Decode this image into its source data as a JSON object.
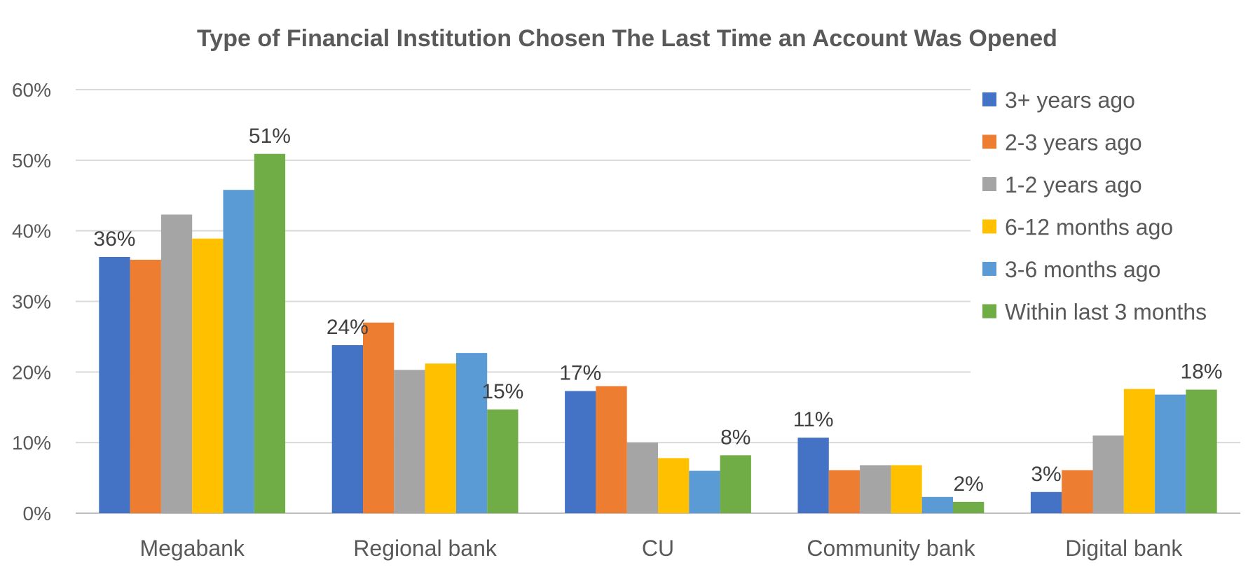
{
  "chart_data": {
    "type": "bar",
    "title": "Type of Financial Institution Chosen The Last Time an Account Was Opened",
    "xlabel": "",
    "ylabel": "",
    "ylim": [
      0,
      60
    ],
    "yticks": [
      "0%",
      "10%",
      "20%",
      "30%",
      "40%",
      "50%",
      "60%"
    ],
    "grid": true,
    "legend_position": "right",
    "categories": [
      "Megabank",
      "Regional bank",
      "CU",
      "Community bank",
      "Digital bank"
    ],
    "series": [
      {
        "name": "3+ years ago",
        "color": "#4472C4",
        "values": [
          36.3,
          23.8,
          17.3,
          10.7,
          3.0
        ]
      },
      {
        "name": "2-3 years ago",
        "color": "#ED7D31",
        "values": [
          35.9,
          27.0,
          18.0,
          6.1,
          6.1
        ]
      },
      {
        "name": "1-2 years ago",
        "color": "#A5A5A5",
        "values": [
          42.3,
          20.3,
          10.0,
          6.8,
          11.0
        ]
      },
      {
        "name": "6-12 months ago",
        "color": "#FFC000",
        "values": [
          38.9,
          21.2,
          7.8,
          6.8,
          17.6
        ]
      },
      {
        "name": "3-6 months ago",
        "color": "#5B9BD5",
        "values": [
          45.8,
          22.7,
          6.0,
          2.3,
          16.8
        ]
      },
      {
        "name": "Within last 3 months",
        "color": "#70AD47",
        "values": [
          50.9,
          14.7,
          8.2,
          1.6,
          17.5
        ]
      }
    ],
    "data_labels": [
      {
        "category": 0,
        "series": 0,
        "text": "36%"
      },
      {
        "category": 0,
        "series": 5,
        "text": "51%"
      },
      {
        "category": 1,
        "series": 0,
        "text": "24%"
      },
      {
        "category": 1,
        "series": 5,
        "text": "15%"
      },
      {
        "category": 2,
        "series": 0,
        "text": "17%"
      },
      {
        "category": 2,
        "series": 5,
        "text": "8%"
      },
      {
        "category": 3,
        "series": 0,
        "text": "11%"
      },
      {
        "category": 3,
        "series": 5,
        "text": "2%"
      },
      {
        "category": 4,
        "series": 0,
        "text": "3%"
      },
      {
        "category": 4,
        "series": 5,
        "text": "18%"
      }
    ]
  }
}
